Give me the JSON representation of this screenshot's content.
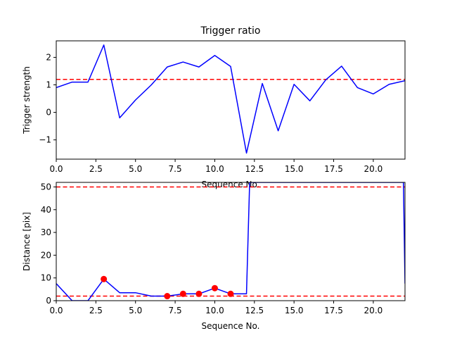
{
  "chart_data": [
    {
      "type": "line",
      "title": "Trigger ratio",
      "xlabel": "Sequence No.",
      "ylabel": "Trigger strength",
      "xlim": [
        0,
        22
      ],
      "ylim": [
        -1.7,
        2.6
      ],
      "xticks": [
        0,
        2.5,
        5,
        7.5,
        10,
        12.5,
        15,
        17.5,
        20
      ],
      "xtick_labels": [
        "0.0",
        "2.5",
        "5.0",
        "7.5",
        "10.0",
        "12.5",
        "15.0",
        "17.5",
        "20.0"
      ],
      "yticks": [
        -1,
        0,
        1,
        2
      ],
      "ytick_labels": [
        "−1",
        "0",
        "1",
        "2"
      ],
      "grid": false,
      "series": [
        {
          "color": "#0000ff",
          "x": [
            0,
            1,
            2,
            3,
            4,
            5,
            6,
            7,
            8,
            9,
            10,
            11,
            12,
            13,
            14,
            15,
            16,
            17,
            18,
            19,
            20,
            21,
            22
          ],
          "y": [
            0.9,
            1.1,
            1.1,
            2.45,
            -0.2,
            0.45,
            1.0,
            1.65,
            1.83,
            1.65,
            2.07,
            1.67,
            -1.48,
            1.05,
            -0.67,
            1.02,
            0.42,
            1.18,
            1.68,
            0.9,
            0.67,
            1.02,
            1.15
          ]
        }
      ],
      "hlines": [
        {
          "y": 1.2,
          "color": "#ff0000",
          "style": "dashed"
        }
      ]
    },
    {
      "type": "line",
      "title": "",
      "xlabel": "Sequence No.",
      "ylabel": "Distance [pix]",
      "xlim": [
        0,
        22
      ],
      "ylim": [
        0,
        52
      ],
      "xticks": [
        0,
        2.5,
        5,
        7.5,
        10,
        12.5,
        15,
        17.5,
        20
      ],
      "xtick_labels": [
        "0.0",
        "2.5",
        "5.0",
        "7.5",
        "10.0",
        "12.5",
        "15.0",
        "17.5",
        "20.0"
      ],
      "yticks": [
        0,
        10,
        20,
        30,
        40,
        50
      ],
      "ytick_labels": [
        "0",
        "10",
        "20",
        "30",
        "40",
        "50"
      ],
      "grid": false,
      "series": [
        {
          "color": "#0000ff",
          "x": [
            0,
            1,
            2,
            3,
            4,
            5,
            6,
            7,
            8,
            9,
            10,
            11,
            12,
            12.2,
            21.9,
            22
          ],
          "y": [
            7.5,
            0,
            0,
            9.5,
            3.5,
            3.5,
            2.0,
            2.0,
            3.0,
            3.0,
            5.5,
            3.0,
            3.0,
            52,
            52,
            7.5
          ]
        }
      ],
      "markers": {
        "color": "#ff0000",
        "x": [
          3,
          7,
          8,
          9,
          10,
          11
        ],
        "y": [
          9.5,
          2.0,
          3.0,
          3.0,
          5.5,
          3.0
        ]
      },
      "hlines": [
        {
          "y": 50,
          "color": "#ff0000",
          "style": "dashed"
        },
        {
          "y": 2,
          "color": "#ff0000",
          "style": "dashed"
        }
      ]
    }
  ]
}
